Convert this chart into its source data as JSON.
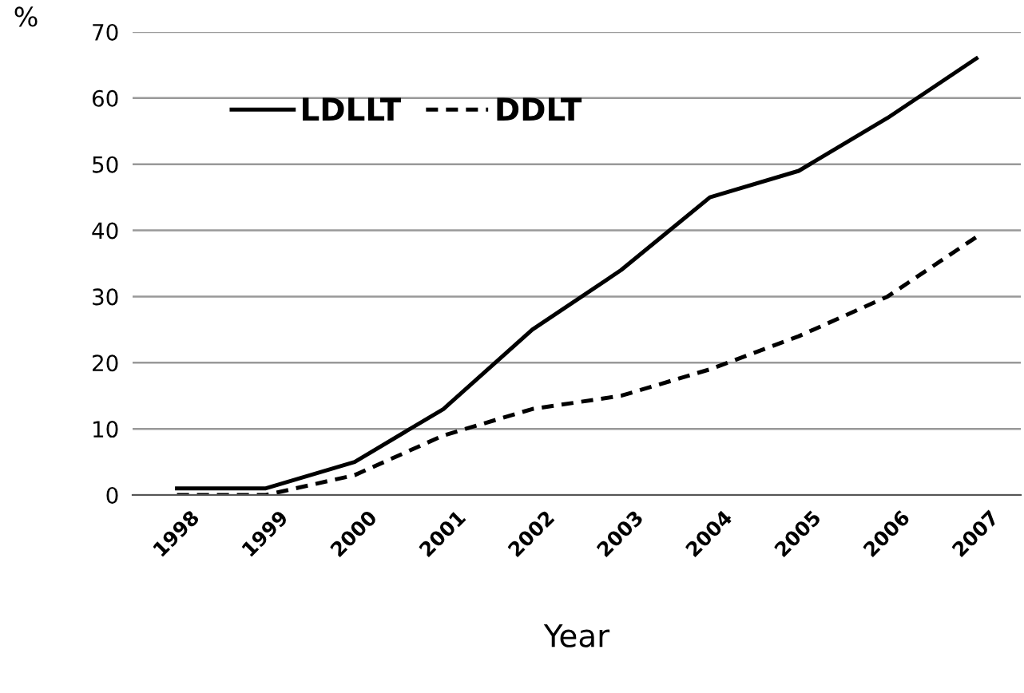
{
  "chart_data": {
    "type": "line",
    "xlabel": "Year",
    "ylabel": "%",
    "categories": [
      "1998",
      "1999",
      "2000",
      "2001",
      "2002",
      "2003",
      "2004",
      "2005",
      "2006",
      "2007"
    ],
    "series": [
      {
        "name": "LDLLT",
        "color": "#000000",
        "line_style": "solid",
        "values": [
          1,
          1,
          5,
          13,
          25,
          34,
          45,
          49,
          57,
          66
        ]
      },
      {
        "name": "DDLT",
        "color": "#000000",
        "line_style": "dashed",
        "values": [
          0,
          0,
          3,
          9,
          13,
          15,
          19,
          24,
          30,
          39
        ]
      }
    ],
    "ylim": [
      0,
      70
    ],
    "yticks": [
      0,
      10,
      20,
      30,
      40,
      50,
      60,
      70
    ],
    "grid": "y",
    "legend": "top left",
    "marker": "none"
  }
}
